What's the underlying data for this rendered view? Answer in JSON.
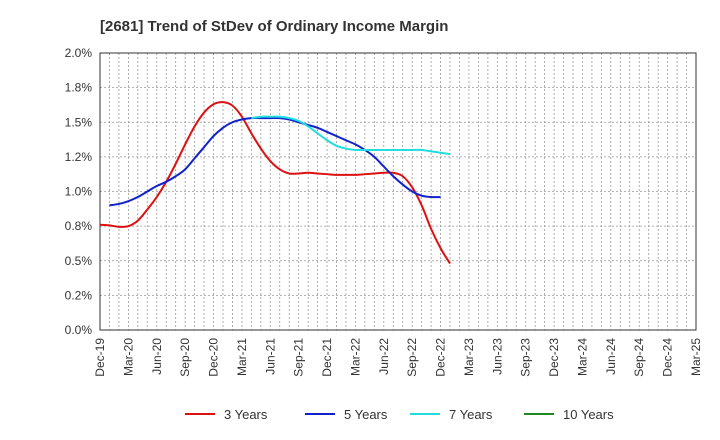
{
  "chart_data": {
    "type": "line",
    "title": "[2681]  Trend of StDev of Ordinary Income Margin",
    "xlabel": "",
    "ylabel": "",
    "x_tick_labels": [
      "Dec-19",
      "Mar-20",
      "Jun-20",
      "Sep-20",
      "Dec-20",
      "Mar-21",
      "Jun-21",
      "Sep-21",
      "Dec-21",
      "Mar-22",
      "Jun-22",
      "Sep-22",
      "Dec-22",
      "Mar-23",
      "Jun-23",
      "Sep-23",
      "Dec-23",
      "Mar-24",
      "Jun-24",
      "Sep-24",
      "Dec-24",
      "Mar-25"
    ],
    "y_tick_labels": [
      "0.0%",
      "0.2%",
      "0.5%",
      "0.8%",
      "1.0%",
      "1.2%",
      "1.5%",
      "1.8%",
      "2.0%"
    ],
    "ylim": [
      0,
      2.0
    ],
    "grid": true,
    "legend_position": "bottom",
    "series": [
      {
        "name": "3 Years",
        "color": "#dd1111",
        "points": [
          [
            0,
            0.76
          ],
          [
            1,
            0.755
          ],
          [
            2,
            0.745
          ],
          [
            3,
            0.75
          ],
          [
            4,
            0.79
          ],
          [
            5,
            0.87
          ],
          [
            6,
            0.96
          ],
          [
            7,
            1.07
          ],
          [
            8,
            1.2
          ],
          [
            9,
            1.34
          ],
          [
            10,
            1.47
          ],
          [
            11,
            1.57
          ],
          [
            12,
            1.63
          ],
          [
            13,
            1.645
          ],
          [
            14,
            1.62
          ],
          [
            15,
            1.54
          ],
          [
            16,
            1.42
          ],
          [
            17,
            1.31
          ],
          [
            18,
            1.22
          ],
          [
            19,
            1.16
          ],
          [
            20,
            1.13
          ],
          [
            21,
            1.13
          ],
          [
            22,
            1.135
          ],
          [
            23,
            1.13
          ],
          [
            24,
            1.125
          ],
          [
            25,
            1.12
          ],
          [
            26,
            1.12
          ],
          [
            27,
            1.12
          ],
          [
            28,
            1.125
          ],
          [
            29,
            1.13
          ],
          [
            30,
            1.135
          ],
          [
            31,
            1.135
          ],
          [
            32,
            1.11
          ],
          [
            33,
            1.03
          ],
          [
            34,
            0.9
          ],
          [
            35,
            0.73
          ],
          [
            36,
            0.59
          ],
          [
            37,
            0.48
          ]
        ]
      },
      {
        "name": "5 Years",
        "color": "#1122cc",
        "points": [
          [
            1,
            0.9
          ],
          [
            2,
            0.91
          ],
          [
            3,
            0.93
          ],
          [
            4,
            0.96
          ],
          [
            5,
            1.0
          ],
          [
            6,
            1.04
          ],
          [
            7,
            1.07
          ],
          [
            8,
            1.11
          ],
          [
            9,
            1.16
          ],
          [
            10,
            1.24
          ],
          [
            11,
            1.32
          ],
          [
            12,
            1.4
          ],
          [
            13,
            1.46
          ],
          [
            14,
            1.5
          ],
          [
            15,
            1.52
          ],
          [
            16,
            1.53
          ],
          [
            17,
            1.53
          ],
          [
            18,
            1.53
          ],
          [
            19,
            1.53
          ],
          [
            20,
            1.52
          ],
          [
            21,
            1.5
          ],
          [
            22,
            1.48
          ],
          [
            23,
            1.46
          ],
          [
            24,
            1.43
          ],
          [
            25,
            1.4
          ],
          [
            26,
            1.37
          ],
          [
            27,
            1.34
          ],
          [
            28,
            1.3
          ],
          [
            29,
            1.25
          ],
          [
            30,
            1.18
          ],
          [
            31,
            1.11
          ],
          [
            32,
            1.05
          ],
          [
            33,
            1.0
          ],
          [
            34,
            0.97
          ],
          [
            35,
            0.96
          ],
          [
            36,
            0.96
          ]
        ]
      },
      {
        "name": "7 Years",
        "color": "#22dddd",
        "points": [
          [
            16,
            1.53
          ],
          [
            17,
            1.54
          ],
          [
            18,
            1.54
          ],
          [
            19,
            1.54
          ],
          [
            20,
            1.53
          ],
          [
            21,
            1.51
          ],
          [
            22,
            1.47
          ],
          [
            23,
            1.42
          ],
          [
            24,
            1.37
          ],
          [
            25,
            1.33
          ],
          [
            26,
            1.31
          ],
          [
            27,
            1.3
          ],
          [
            28,
            1.3
          ],
          [
            29,
            1.3
          ],
          [
            30,
            1.3
          ],
          [
            31,
            1.3
          ],
          [
            32,
            1.3
          ],
          [
            33,
            1.3
          ],
          [
            34,
            1.3
          ],
          [
            35,
            1.29
          ],
          [
            36,
            1.28
          ],
          [
            37,
            1.27
          ]
        ]
      },
      {
        "name": "10 Years",
        "color": "#228822",
        "points": []
      }
    ]
  }
}
